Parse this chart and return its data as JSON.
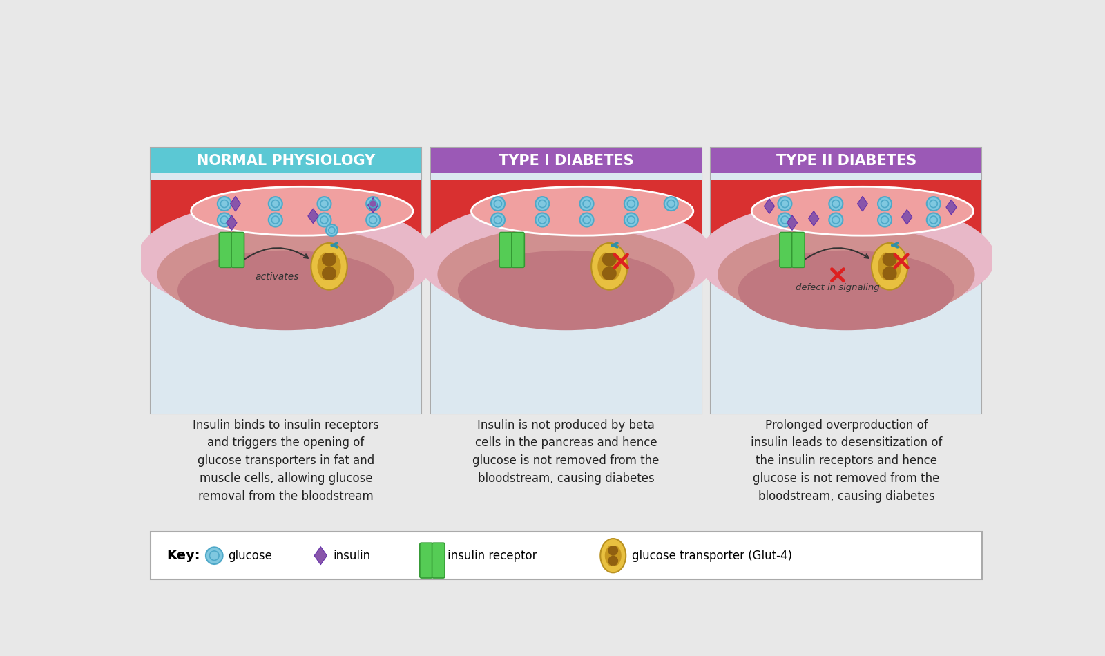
{
  "bg_color": "#e8e8e8",
  "header_colors": [
    "#5bc8d4",
    "#9b59b6",
    "#9b59b6"
  ],
  "header_texts": [
    "NORMAL PHYSIOLOGY",
    "TYPE I DIABETES",
    "TYPE II DIABETES"
  ],
  "vessel_red": "#d93030",
  "vessel_pink": "#f0a0a0",
  "vessel_outline": "#ffffff",
  "cell_bg_light": "#dce8f0",
  "cell_layer1": "#e8b8c8",
  "cell_layer2": "#d09090",
  "cell_layer3": "#c07880",
  "glucose_fill": "#80c8e0",
  "glucose_edge": "#4ea8c8",
  "insulin_fill": "#8855aa",
  "insulin_edge": "#6633aa",
  "receptor_fill": "#55cc55",
  "receptor_edge": "#339933",
  "transporter_outer": "#e8c040",
  "transporter_mid": "#c89820",
  "transporter_dark": "#906010",
  "arrow_color": "#3090a8",
  "cross_color": "#dd2020",
  "text_color": "#222222",
  "panel_border": "#aaaaaa",
  "key_border": "#aaaaaa"
}
